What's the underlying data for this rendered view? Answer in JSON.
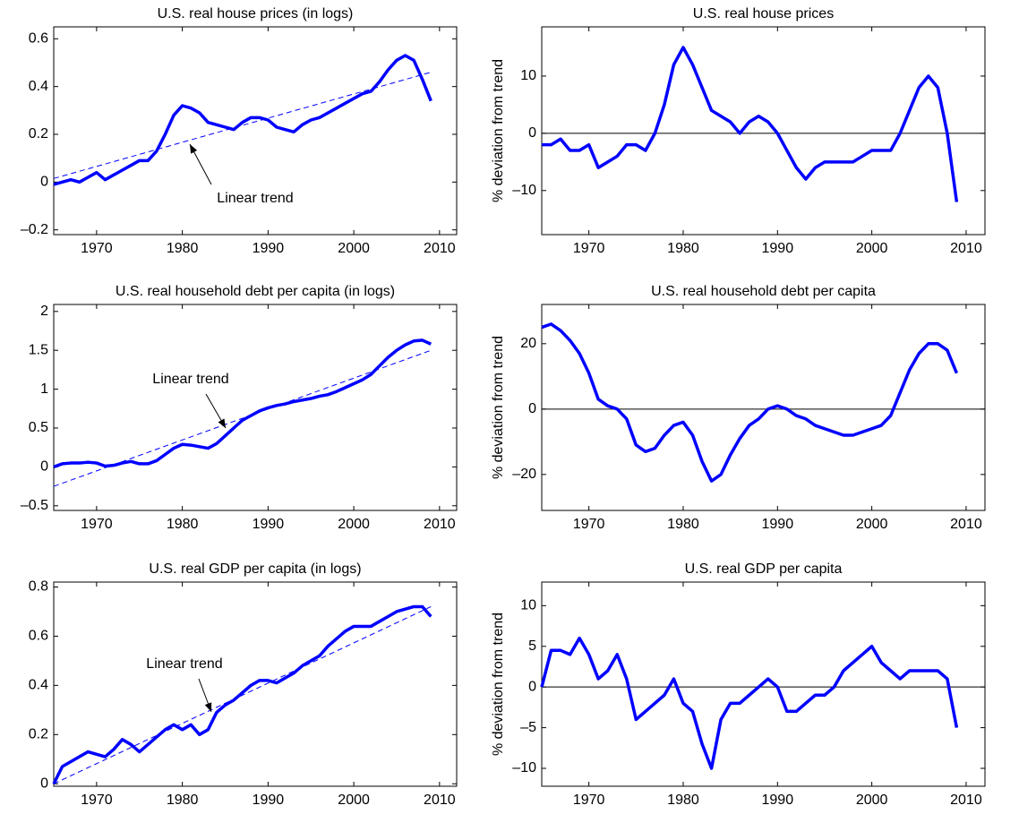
{
  "chart_data": [
    {
      "type": "line",
      "title": "U.S. real house prices (in logs)",
      "x": [
        1965,
        1966,
        1967,
        1968,
        1969,
        1970,
        1971,
        1972,
        1973,
        1974,
        1975,
        1976,
        1977,
        1978,
        1979,
        1980,
        1981,
        1982,
        1983,
        1984,
        1985,
        1986,
        1987,
        1988,
        1989,
        1990,
        1991,
        1992,
        1993,
        1994,
        1995,
        1996,
        1997,
        1998,
        1999,
        2000,
        2001,
        2002,
        2003,
        2004,
        2005,
        2006,
        2007,
        2008,
        2009
      ],
      "series": [
        {
          "color": "#0000ff",
          "values": [
            -0.01,
            0.0,
            0.01,
            0.0,
            0.02,
            0.04,
            0.01,
            0.03,
            0.05,
            0.07,
            0.09,
            0.09,
            0.13,
            0.2,
            0.28,
            0.32,
            0.31,
            0.29,
            0.25,
            0.24,
            0.23,
            0.22,
            0.25,
            0.27,
            0.27,
            0.26,
            0.23,
            0.22,
            0.21,
            0.24,
            0.26,
            0.27,
            0.29,
            0.31,
            0.33,
            0.35,
            0.37,
            0.38,
            0.42,
            0.47,
            0.51,
            0.53,
            0.51,
            0.43,
            0.34
          ]
        }
      ],
      "trend": {
        "x": [
          1965,
          2009
        ],
        "values": [
          0.015,
          0.46
        ],
        "color": "#0000ff",
        "dashed": true
      },
      "annotation": "Linear trend",
      "xlim": [
        1965,
        2012
      ],
      "xticks": [
        1970,
        1980,
        1990,
        2000,
        2010
      ],
      "ylim": [
        -0.22,
        0.65
      ],
      "yticks": [
        {
          "value": -0.2,
          "label": "–0.2"
        },
        0,
        0.2,
        0.4,
        0.6
      ]
    },
    {
      "type": "line",
      "title": "U.S. real house prices",
      "ylabel": "% deviation from trend",
      "x": [
        1965,
        1966,
        1967,
        1968,
        1969,
        1970,
        1971,
        1972,
        1973,
        1974,
        1975,
        1976,
        1977,
        1978,
        1979,
        1980,
        1981,
        1982,
        1983,
        1984,
        1985,
        1986,
        1987,
        1988,
        1989,
        1990,
        1991,
        1992,
        1993,
        1994,
        1995,
        1996,
        1997,
        1998,
        1999,
        2000,
        2001,
        2002,
        2003,
        2004,
        2005,
        2006,
        2007,
        2008,
        2009
      ],
      "series": [
        {
          "color": "#0000ff",
          "values": [
            -2,
            -2,
            -1,
            -3,
            -3,
            -2,
            -6,
            -5,
            -4,
            -2,
            -2,
            -3,
            0,
            5,
            12,
            15,
            12,
            8,
            4,
            3,
            2,
            0,
            2,
            3,
            2,
            0,
            -3,
            -6,
            -8,
            -6,
            -5,
            -5,
            -5,
            -5,
            -4,
            -3,
            -3,
            -3,
            0,
            4,
            8,
            10,
            8,
            0,
            -12
          ]
        }
      ],
      "hline": 0,
      "xlim": [
        1965,
        2012
      ],
      "xticks": [
        1970,
        1980,
        1990,
        2000,
        2010
      ],
      "ylim": [
        -17.7,
        18.6
      ],
      "yticks": [
        {
          "value": -10,
          "label": "–10"
        },
        0,
        10
      ]
    },
    {
      "type": "line",
      "title": "U.S. real household debt per capita (in logs)",
      "x": [
        1965,
        1966,
        1967,
        1968,
        1969,
        1970,
        1971,
        1972,
        1973,
        1974,
        1975,
        1976,
        1977,
        1978,
        1979,
        1980,
        1981,
        1982,
        1983,
        1984,
        1985,
        1986,
        1987,
        1988,
        1989,
        1990,
        1991,
        1992,
        1993,
        1994,
        1995,
        1996,
        1997,
        1998,
        1999,
        2000,
        2001,
        2002,
        2003,
        2004,
        2005,
        2006,
        2007,
        2008,
        2009
      ],
      "series": [
        {
          "color": "#0000ff",
          "values": [
            0.0,
            0.04,
            0.05,
            0.05,
            0.06,
            0.05,
            0.01,
            0.02,
            0.05,
            0.07,
            0.04,
            0.04,
            0.08,
            0.16,
            0.24,
            0.29,
            0.28,
            0.26,
            0.24,
            0.3,
            0.4,
            0.5,
            0.6,
            0.66,
            0.72,
            0.76,
            0.79,
            0.81,
            0.84,
            0.86,
            0.88,
            0.91,
            0.93,
            0.97,
            1.02,
            1.07,
            1.12,
            1.19,
            1.3,
            1.41,
            1.5,
            1.57,
            1.62,
            1.63,
            1.58
          ]
        }
      ],
      "trend": {
        "x": [
          1965,
          2009
        ],
        "values": [
          -0.25,
          1.5
        ],
        "color": "#0000ff",
        "dashed": true
      },
      "annotation": "Linear trend",
      "xlim": [
        1965,
        2012
      ],
      "xticks": [
        1970,
        1980,
        1990,
        2000,
        2010
      ],
      "ylim": [
        -0.56,
        2.09
      ],
      "yticks": [
        {
          "value": -0.5,
          "label": "–0.5"
        },
        0,
        0.5,
        1,
        1.5,
        2
      ]
    },
    {
      "type": "line",
      "title": "U.S. real household debt per capita",
      "ylabel": "% deviation from trend",
      "x": [
        1965,
        1966,
        1967,
        1968,
        1969,
        1970,
        1971,
        1972,
        1973,
        1974,
        1975,
        1976,
        1977,
        1978,
        1979,
        1980,
        1981,
        1982,
        1983,
        1984,
        1985,
        1986,
        1987,
        1988,
        1989,
        1990,
        1991,
        1992,
        1993,
        1994,
        1995,
        1996,
        1997,
        1998,
        1999,
        2000,
        2001,
        2002,
        2003,
        2004,
        2005,
        2006,
        2007,
        2008,
        2009
      ],
      "series": [
        {
          "color": "#0000ff",
          "values": [
            25,
            26,
            24,
            21,
            17,
            11,
            3,
            1,
            0,
            -3,
            -11,
            -13,
            -12,
            -8,
            -5,
            -4,
            -8,
            -16,
            -22,
            -20,
            -14,
            -9,
            -5,
            -3,
            0,
            1,
            0,
            -2,
            -3,
            -5,
            -6,
            -7,
            -8,
            -8,
            -7,
            -6,
            -5,
            -2,
            5,
            12,
            17,
            20,
            20,
            18,
            11
          ]
        }
      ],
      "hline": 0,
      "xlim": [
        1965,
        2012
      ],
      "xticks": [
        1970,
        1980,
        1990,
        2000,
        2010
      ],
      "ylim": [
        -31,
        32
      ],
      "yticks": [
        {
          "value": -20,
          "label": "–20"
        },
        0,
        20
      ]
    },
    {
      "type": "line",
      "title": "U.S. real GDP per capita (in logs)",
      "x": [
        1965,
        1966,
        1967,
        1968,
        1969,
        1970,
        1971,
        1972,
        1973,
        1974,
        1975,
        1976,
        1977,
        1978,
        1979,
        1980,
        1981,
        1982,
        1983,
        1984,
        1985,
        1986,
        1987,
        1988,
        1989,
        1990,
        1991,
        1992,
        1993,
        1994,
        1995,
        1996,
        1997,
        1998,
        1999,
        2000,
        2001,
        2002,
        2003,
        2004,
        2005,
        2006,
        2007,
        2008,
        2009
      ],
      "series": [
        {
          "color": "#0000ff",
          "values": [
            0.0,
            0.07,
            0.09,
            0.11,
            0.13,
            0.12,
            0.11,
            0.14,
            0.18,
            0.16,
            0.13,
            0.16,
            0.19,
            0.22,
            0.24,
            0.22,
            0.24,
            0.2,
            0.22,
            0.29,
            0.32,
            0.34,
            0.37,
            0.4,
            0.42,
            0.42,
            0.41,
            0.43,
            0.45,
            0.48,
            0.5,
            0.52,
            0.56,
            0.59,
            0.62,
            0.64,
            0.64,
            0.64,
            0.66,
            0.68,
            0.7,
            0.71,
            0.72,
            0.72,
            0.68
          ]
        }
      ],
      "trend": {
        "x": [
          1965,
          2009
        ],
        "values": [
          0.0,
          0.72
        ],
        "color": "#0000ff",
        "dashed": true
      },
      "annotation": "Linear trend",
      "xlim": [
        1965,
        2012
      ],
      "xticks": [
        1970,
        1980,
        1990,
        2000,
        2010
      ],
      "ylim": [
        -0.01,
        0.82
      ],
      "yticks": [
        0,
        0.2,
        0.4,
        0.6,
        0.8
      ]
    },
    {
      "type": "line",
      "title": "U.S. real GDP per capita",
      "ylabel": "% deviation from trend",
      "x": [
        1965,
        1966,
        1967,
        1968,
        1969,
        1970,
        1971,
        1972,
        1973,
        1974,
        1975,
        1976,
        1977,
        1978,
        1979,
        1980,
        1981,
        1982,
        1983,
        1984,
        1985,
        1986,
        1987,
        1988,
        1989,
        1990,
        1991,
        1992,
        1993,
        1994,
        1995,
        1996,
        1997,
        1998,
        1999,
        2000,
        2001,
        2002,
        2003,
        2004,
        2005,
        2006,
        2007,
        2008,
        2009
      ],
      "series": [
        {
          "color": "#0000ff",
          "values": [
            0,
            4.5,
            4.5,
            4,
            6,
            4,
            1,
            2,
            4,
            1,
            -4,
            -3,
            -2,
            -1,
            1,
            -2,
            -3,
            -7,
            -10,
            -4,
            -2,
            -2,
            -1,
            0,
            1,
            0,
            -3,
            -3,
            -2,
            -1,
            -1,
            0,
            2,
            3,
            4,
            5,
            3,
            2,
            1,
            2,
            2,
            2,
            2,
            1,
            -5
          ]
        }
      ],
      "hline": 0,
      "xlim": [
        1965,
        2012
      ],
      "xticks": [
        1970,
        1980,
        1990,
        2000,
        2010
      ],
      "ylim": [
        -12.2,
        12.9
      ],
      "yticks": [
        {
          "value": -10,
          "label": "–10"
        },
        {
          "value": -5,
          "label": "–5"
        },
        0,
        5,
        10
      ]
    }
  ]
}
